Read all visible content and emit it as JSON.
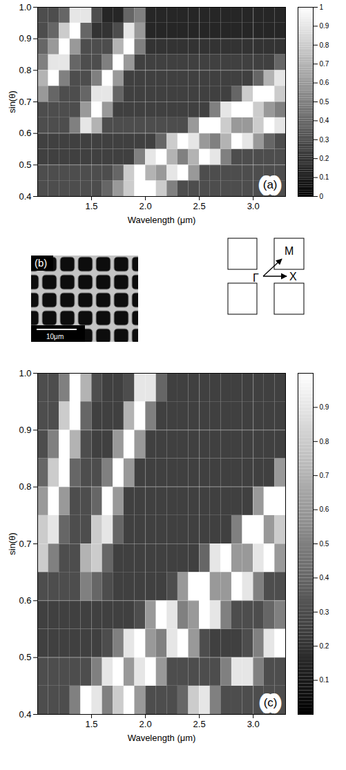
{
  "chart_data": [
    {
      "type": "heatmap",
      "panel_label": "(a)",
      "xlabel": "Wavelength (μm)",
      "ylabel": "sin(θ)",
      "xlim": [
        1.0,
        3.3
      ],
      "ylim": [
        0.4,
        1.0
      ],
      "xticks": [
        1.5,
        {
          "value": 2,
          "label": "2.0"
        },
        2.5,
        {
          "value": 3,
          "label": "3.0"
        }
      ],
      "yticks": [
        0.4,
        0.5,
        0.6,
        0.7,
        0.8,
        0.9,
        {
          "value": 1,
          "label": "1.0"
        }
      ],
      "grid": true,
      "x": [
        1.05,
        1.15,
        1.25,
        1.35,
        1.45,
        1.55,
        1.65,
        1.75,
        1.85,
        1.95,
        2.05,
        2.15,
        2.25,
        2.35,
        2.45,
        2.55,
        2.65,
        2.75,
        2.85,
        2.95,
        3.05,
        3.15,
        3.25
      ],
      "y": [
        0.425,
        0.475,
        0.525,
        0.575,
        0.625,
        0.675,
        0.725,
        0.775,
        0.825,
        0.875,
        0.925,
        0.975
      ],
      "values": [
        [
          0.3,
          0.3,
          0.3,
          0.3,
          0.3,
          0.3,
          0.4,
          0.6,
          0.8,
          1.0,
          1.0,
          0.8,
          0.5,
          0.3,
          0.3,
          0.3,
          0.3,
          0.3,
          0.3,
          0.3,
          0.3,
          0.3,
          0.3
        ],
        [
          0.3,
          0.3,
          0.3,
          0.3,
          0.3,
          0.3,
          0.3,
          0.4,
          0.8,
          1.0,
          0.7,
          0.6,
          0.9,
          1.0,
          0.6,
          0.3,
          0.3,
          0.3,
          0.3,
          0.3,
          0.3,
          0.3,
          0.3
        ],
        [
          0.25,
          0.25,
          0.25,
          0.25,
          0.25,
          0.25,
          0.25,
          0.25,
          0.25,
          0.5,
          0.9,
          1.0,
          0.7,
          0.5,
          0.7,
          1.0,
          0.9,
          0.5,
          0.3,
          0.3,
          0.3,
          0.3,
          0.3
        ],
        [
          0.25,
          0.25,
          0.25,
          0.25,
          0.25,
          0.25,
          0.25,
          0.25,
          0.25,
          0.25,
          0.25,
          0.4,
          0.8,
          1.0,
          0.9,
          0.6,
          0.5,
          0.7,
          1.0,
          0.9,
          0.6,
          0.4,
          0.3
        ],
        [
          0.3,
          0.3,
          0.3,
          0.5,
          0.9,
          0.7,
          0.3,
          0.3,
          0.3,
          0.3,
          0.3,
          0.3,
          0.3,
          0.3,
          0.6,
          1.0,
          1.0,
          0.8,
          0.6,
          0.6,
          0.8,
          1.0,
          0.9
        ],
        [
          0.3,
          0.3,
          0.3,
          0.3,
          0.6,
          1.0,
          0.6,
          0.25,
          0.25,
          0.25,
          0.25,
          0.25,
          0.25,
          0.25,
          0.25,
          0.25,
          0.5,
          0.9,
          1.0,
          1.0,
          0.8,
          0.6,
          0.5
        ],
        [
          0.6,
          0.4,
          0.3,
          0.3,
          0.4,
          0.9,
          0.9,
          0.4,
          0.25,
          0.25,
          0.25,
          0.25,
          0.25,
          0.25,
          0.25,
          0.25,
          0.25,
          0.25,
          0.4,
          0.8,
          1.0,
          1.0,
          0.8
        ],
        [
          0.7,
          1.0,
          0.5,
          0.3,
          0.3,
          0.5,
          1.0,
          0.6,
          0.25,
          0.25,
          0.25,
          0.25,
          0.25,
          0.25,
          0.25,
          0.25,
          0.25,
          0.25,
          0.25,
          0.25,
          0.4,
          0.7,
          0.9
        ],
        [
          0.5,
          0.9,
          0.9,
          0.4,
          0.3,
          0.3,
          0.5,
          1.0,
          0.6,
          0.25,
          0.25,
          0.25,
          0.25,
          0.25,
          0.25,
          0.25,
          0.25,
          0.25,
          0.25,
          0.25,
          0.25,
          0.25,
          0.4
        ],
        [
          0.4,
          0.6,
          1.0,
          0.6,
          0.3,
          0.3,
          0.3,
          0.7,
          1.0,
          0.5,
          0.2,
          0.2,
          0.2,
          0.2,
          0.2,
          0.2,
          0.2,
          0.2,
          0.2,
          0.2,
          0.2,
          0.2,
          0.2
        ],
        [
          0.3,
          0.4,
          0.8,
          1.0,
          0.4,
          0.2,
          0.2,
          0.3,
          0.9,
          0.6,
          0.15,
          0.15,
          0.15,
          0.15,
          0.15,
          0.15,
          0.15,
          0.15,
          0.15,
          0.15,
          0.15,
          0.15,
          0.15
        ],
        [
          0.3,
          0.3,
          0.4,
          0.9,
          0.9,
          0.3,
          0.15,
          0.15,
          0.4,
          0.5,
          0.15,
          0.15,
          0.15,
          0.15,
          0.15,
          0.15,
          0.15,
          0.15,
          0.15,
          0.15,
          0.15,
          0.15,
          0.15
        ]
      ],
      "colorbar": {
        "range": [
          0,
          1
        ],
        "ticks": [
          0,
          0.1,
          0.2,
          0.3,
          0.4,
          0.5,
          0.6,
          0.7,
          0.8,
          0.9,
          1
        ]
      }
    },
    {
      "type": "heatmap",
      "panel_label": "(c)",
      "xlabel": "Wavelength (μm)",
      "ylabel": "sin(θ)",
      "xlim": [
        1.0,
        3.3
      ],
      "ylim": [
        0.4,
        1.0
      ],
      "xticks": [
        1.5,
        {
          "value": 2,
          "label": "2.0"
        },
        2.5,
        {
          "value": 3,
          "label": "3.0"
        }
      ],
      "yticks": [
        0.4,
        0.5,
        0.6,
        0.7,
        0.8,
        0.9,
        {
          "value": 1,
          "label": "1.0"
        }
      ],
      "grid": true,
      "x": [
        1.05,
        1.15,
        1.25,
        1.35,
        1.45,
        1.55,
        1.65,
        1.75,
        1.85,
        1.95,
        2.05,
        2.15,
        2.25,
        2.35,
        2.45,
        2.55,
        2.65,
        2.75,
        2.85,
        2.95,
        3.05,
        3.15,
        3.25
      ],
      "y": [
        0.425,
        0.475,
        0.525,
        0.575,
        0.625,
        0.675,
        0.725,
        0.775,
        0.825,
        0.875,
        0.925,
        0.975
      ],
      "values": [
        [
          0.3,
          0.3,
          0.3,
          0.5,
          1.0,
          0.9,
          0.5,
          0.8,
          1.0,
          0.6,
          0.3,
          0.3,
          0.3,
          0.4,
          0.8,
          0.9,
          0.5,
          0.3,
          0.3,
          0.3,
          0.3,
          0.3,
          0.3
        ],
        [
          0.3,
          0.3,
          0.3,
          0.3,
          0.3,
          0.5,
          0.9,
          1.0,
          0.6,
          0.9,
          1.0,
          0.6,
          0.3,
          0.3,
          0.3,
          0.3,
          0.3,
          0.5,
          0.9,
          0.9,
          0.5,
          0.3,
          0.3
        ],
        [
          0.25,
          0.25,
          0.25,
          0.25,
          0.25,
          0.25,
          0.3,
          0.5,
          0.9,
          1.0,
          0.6,
          0.5,
          0.9,
          1.0,
          0.6,
          0.3,
          0.25,
          0.25,
          0.25,
          0.3,
          0.5,
          0.9,
          1.0
        ],
        [
          0.25,
          0.25,
          0.25,
          0.25,
          0.25,
          0.25,
          0.25,
          0.25,
          0.25,
          0.3,
          0.6,
          1.0,
          0.9,
          0.5,
          0.6,
          1.0,
          0.9,
          0.5,
          0.3,
          0.3,
          0.3,
          0.4,
          0.5
        ],
        [
          0.3,
          0.3,
          0.3,
          0.3,
          0.5,
          0.4,
          0.3,
          0.25,
          0.25,
          0.25,
          0.25,
          0.25,
          0.3,
          0.6,
          1.0,
          1.0,
          0.6,
          0.6,
          1.0,
          0.9,
          0.5,
          0.3,
          0.3
        ],
        [
          0.8,
          0.5,
          0.3,
          0.3,
          0.7,
          0.8,
          0.4,
          0.25,
          0.25,
          0.25,
          0.25,
          0.25,
          0.25,
          0.25,
          0.25,
          0.4,
          0.9,
          1.0,
          0.6,
          0.6,
          0.9,
          1.0,
          0.6
        ],
        [
          0.8,
          0.9,
          0.4,
          0.3,
          0.3,
          0.8,
          0.9,
          0.4,
          0.25,
          0.25,
          0.25,
          0.25,
          0.25,
          0.25,
          0.25,
          0.25,
          0.25,
          0.25,
          0.5,
          1.0,
          1.0,
          0.6,
          0.8
        ],
        [
          0.6,
          1.0,
          0.6,
          0.3,
          0.3,
          0.4,
          1.0,
          0.6,
          0.25,
          0.25,
          0.25,
          0.25,
          0.25,
          0.25,
          0.25,
          0.25,
          0.25,
          0.25,
          0.25,
          0.25,
          0.6,
          1.0,
          1.0
        ],
        [
          0.4,
          0.8,
          1.0,
          0.4,
          0.3,
          0.3,
          0.5,
          1.0,
          0.6,
          0.25,
          0.25,
          0.25,
          0.25,
          0.25,
          0.25,
          0.25,
          0.25,
          0.25,
          0.25,
          0.25,
          0.25,
          0.25,
          0.6
        ],
        [
          0.3,
          0.5,
          1.0,
          0.7,
          0.3,
          0.25,
          0.25,
          0.6,
          1.0,
          0.6,
          0.25,
          0.25,
          0.25,
          0.25,
          0.25,
          0.25,
          0.25,
          0.25,
          0.25,
          0.25,
          0.25,
          0.25,
          0.25
        ],
        [
          0.3,
          0.3,
          0.8,
          1.0,
          0.4,
          0.25,
          0.25,
          0.25,
          0.7,
          1.0,
          0.5,
          0.25,
          0.25,
          0.25,
          0.25,
          0.25,
          0.25,
          0.25,
          0.25,
          0.25,
          0.25,
          0.25,
          0.25
        ],
        [
          0.3,
          0.3,
          0.5,
          1.0,
          0.7,
          0.3,
          0.25,
          0.25,
          0.3,
          0.9,
          0.9,
          0.4,
          0.25,
          0.25,
          0.25,
          0.25,
          0.25,
          0.25,
          0.25,
          0.25,
          0.25,
          0.25,
          0.25
        ]
      ],
      "colorbar": {
        "range": [
          0,
          1
        ],
        "ticks": [
          0.1,
          0.2,
          0.3,
          0.4,
          0.5,
          0.6,
          0.7,
          0.8,
          0.9
        ]
      }
    }
  ],
  "panel_b": {
    "label": "(b)",
    "scale_bar": "10μm",
    "diagram_labels": {
      "origin": "Γ",
      "x_point": "X",
      "m_point": "M"
    }
  }
}
